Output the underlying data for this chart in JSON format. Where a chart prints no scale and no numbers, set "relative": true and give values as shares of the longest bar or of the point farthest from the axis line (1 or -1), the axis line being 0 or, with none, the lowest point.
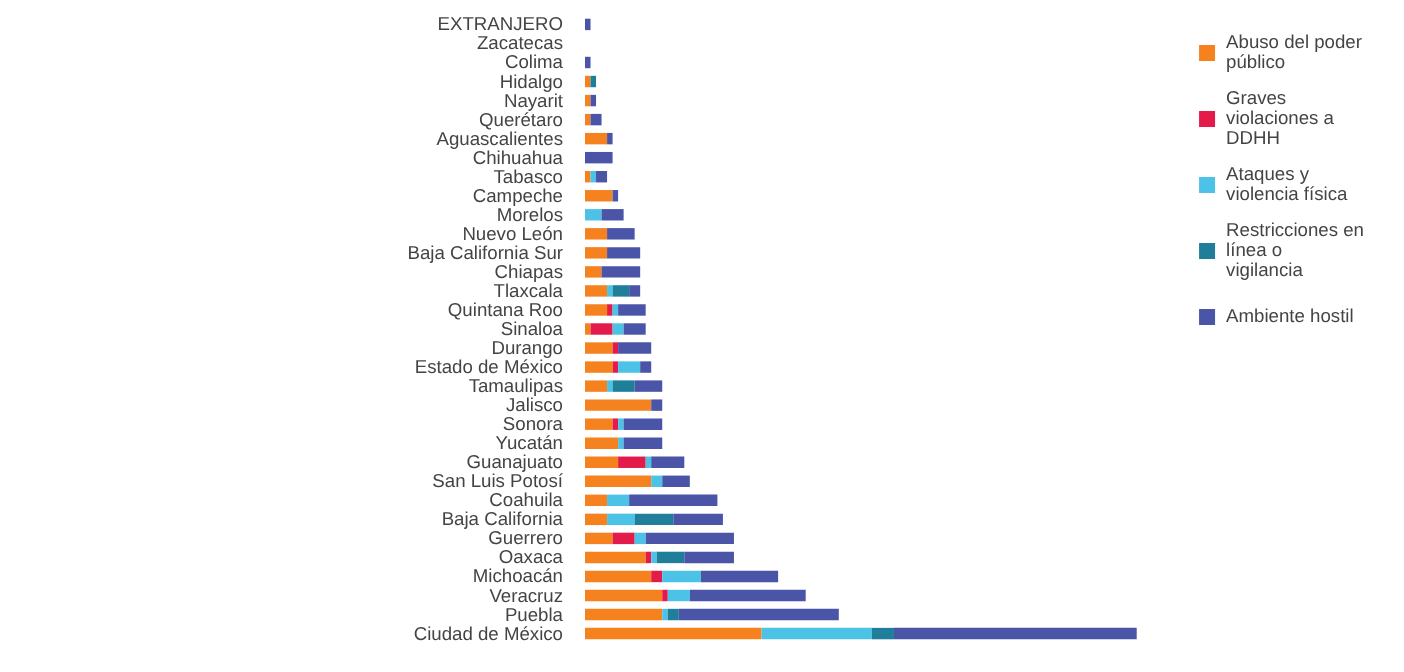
{
  "chart_data": {
    "type": "bar",
    "orientation": "horizontal",
    "stacked": true,
    "relative": true,
    "legend": "top right",
    "grid": false,
    "categories": [
      "EXTRANJERO",
      "Zacatecas",
      "Colima",
      "Hidalgo",
      "Nayarit",
      "Querétaro",
      "Aguascalientes",
      "Chihuahua",
      "Tabasco",
      "Campeche",
      "Morelos",
      "Nuevo León",
      "Baja California Sur",
      "Chiapas",
      "Tlaxcala",
      "Quintana Roo",
      "Sinaloa",
      "Durango",
      "Estado de México",
      "Tamaulipas",
      "Jalisco",
      "Sonora",
      "Yucatán",
      "Guanajuato",
      "San Luis Potosí",
      "Coahuila",
      "Baja California",
      "Guerrero",
      "Oaxaca",
      "Michoacán",
      "Veracruz",
      "Puebla",
      "Ciudad de México"
    ],
    "series": [
      {
        "name": "Abuso del poder público",
        "color": "#f5821f",
        "values": [
          null,
          null,
          null,
          0.01,
          0.01,
          0.01,
          0.04,
          null,
          0.01,
          0.05,
          null,
          0.04,
          0.04,
          0.03,
          0.04,
          0.04,
          0.01,
          0.05,
          0.05,
          0.04,
          0.12,
          0.05,
          0.06,
          0.06,
          0.12,
          0.04,
          0.04,
          0.05,
          0.11,
          0.12,
          0.14,
          0.14,
          0.32
        ]
      },
      {
        "name": "Graves violaciones a DDHH",
        "color": "#e31b4b",
        "values": [
          null,
          null,
          null,
          null,
          null,
          null,
          null,
          null,
          null,
          null,
          null,
          null,
          null,
          null,
          null,
          0.01,
          0.04,
          0.01,
          0.01,
          null,
          null,
          0.01,
          null,
          0.05,
          null,
          null,
          null,
          0.04,
          0.01,
          0.02,
          0.01,
          null,
          null
        ]
      },
      {
        "name": "Ataques y violencia física",
        "color": "#4cc3e6",
        "values": [
          null,
          null,
          null,
          null,
          null,
          null,
          null,
          null,
          0.01,
          null,
          0.03,
          null,
          null,
          null,
          0.01,
          0.01,
          0.02,
          null,
          0.04,
          0.01,
          null,
          0.01,
          0.01,
          0.01,
          0.02,
          0.04,
          0.05,
          0.02,
          0.01,
          0.07,
          0.04,
          0.01,
          0.2
        ]
      },
      {
        "name": "Restricciones en línea o vigilancia",
        "color": "#1f7f9a",
        "values": [
          null,
          null,
          null,
          0.01,
          null,
          null,
          null,
          null,
          null,
          null,
          null,
          null,
          null,
          null,
          0.03,
          null,
          null,
          null,
          null,
          0.04,
          null,
          null,
          null,
          null,
          null,
          null,
          0.07,
          null,
          0.05,
          null,
          null,
          0.02,
          0.04
        ]
      },
      {
        "name": "Ambiente hostil",
        "color": "#4b55a8",
        "values": [
          0.01,
          null,
          0.01,
          null,
          0.01,
          0.02,
          0.01,
          0.05,
          0.02,
          0.01,
          0.04,
          0.05,
          0.06,
          0.07,
          0.02,
          0.05,
          0.04,
          0.06,
          0.02,
          0.05,
          0.02,
          0.07,
          0.07,
          0.06,
          0.05,
          0.16,
          0.09,
          0.16,
          0.09,
          0.14,
          0.21,
          0.29,
          0.44
        ]
      }
    ]
  }
}
